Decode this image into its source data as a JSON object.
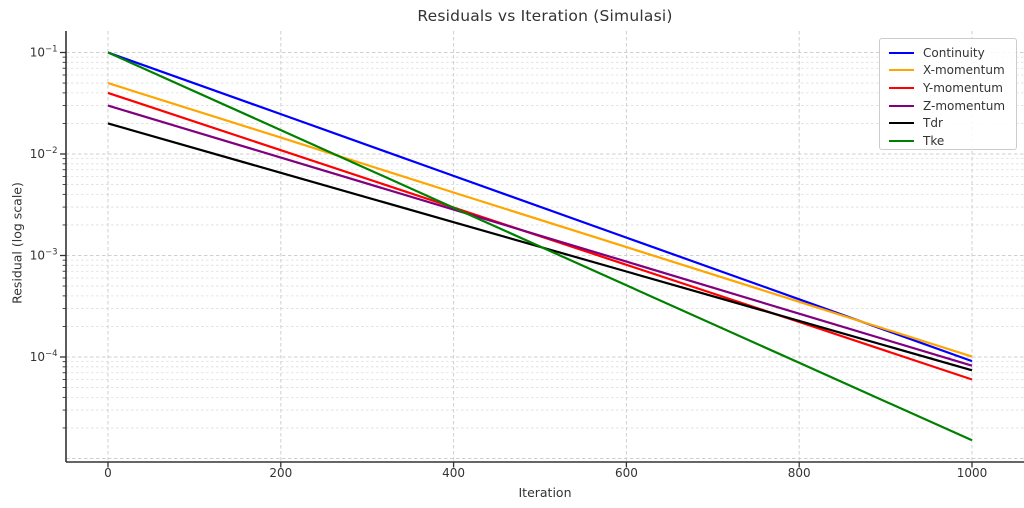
{
  "title": "Residuals vs Iteration (Simulasi)",
  "xlabel": "Iteration",
  "ylabel": "Residual (log scale)",
  "x_ticks": [
    0,
    200,
    400,
    600,
    800,
    1000
  ],
  "y_tick_exponents": [
    -1,
    -2,
    -3,
    -4
  ],
  "legend": {
    "position": "upper right",
    "entries": [
      {
        "label": "Continuity",
        "color": "#0000ff"
      },
      {
        "label": "X-momentum",
        "color": "#ffa500"
      },
      {
        "label": "Y-momentum",
        "color": "#ff0000"
      },
      {
        "label": "Z-momentum",
        "color": "#800080"
      },
      {
        "label": "Tdr",
        "color": "#000000"
      },
      {
        "label": "Tke",
        "color": "#008000"
      }
    ]
  },
  "style": {
    "grid_major_color": "#cfcfcf",
    "grid_minor_color": "#dedede",
    "spine_color": "#333333",
    "text_color": "#333333",
    "line_width": 2.2
  },
  "chart_data": {
    "type": "line",
    "title": "Residuals vs Iteration (Simulasi)",
    "xlabel": "Iteration",
    "ylabel": "Residual (log scale)",
    "y_scale": "log",
    "xlim": [
      -48,
      1060
    ],
    "ylim": [
      1e-05,
      0.165
    ],
    "grid": true,
    "legend_position": "upper right",
    "x": [
      0,
      200,
      400,
      600,
      800,
      1000
    ],
    "series": [
      {
        "name": "Continuity",
        "color": "#0000ff",
        "values": [
          0.1,
          0.0247,
          0.00608,
          0.0015,
          0.00037,
          9.12e-05
        ]
      },
      {
        "name": "X-momentum",
        "color": "#ffa500",
        "values": [
          0.05,
          0.0145,
          0.00418,
          0.00121,
          0.00035,
          0.000101
        ]
      },
      {
        "name": "Y-momentum",
        "color": "#ff0000",
        "values": [
          0.04,
          0.0109,
          0.00297,
          0.00081,
          0.000221,
          6e-05
        ]
      },
      {
        "name": "Z-momentum",
        "color": "#800080",
        "values": [
          0.03,
          0.00922,
          0.00283,
          0.00087,
          0.000267,
          8.2e-05
        ]
      },
      {
        "name": "Tdr",
        "color": "#000000",
        "values": [
          0.02,
          0.00653,
          0.00213,
          0.000695,
          0.000227,
          7.4e-05
        ]
      },
      {
        "name": "Tke",
        "color": "#008000",
        "values": [
          0.1,
          0.0172,
          0.00296,
          0.000509,
          8.76e-05,
          1.51e-05
        ]
      }
    ]
  }
}
